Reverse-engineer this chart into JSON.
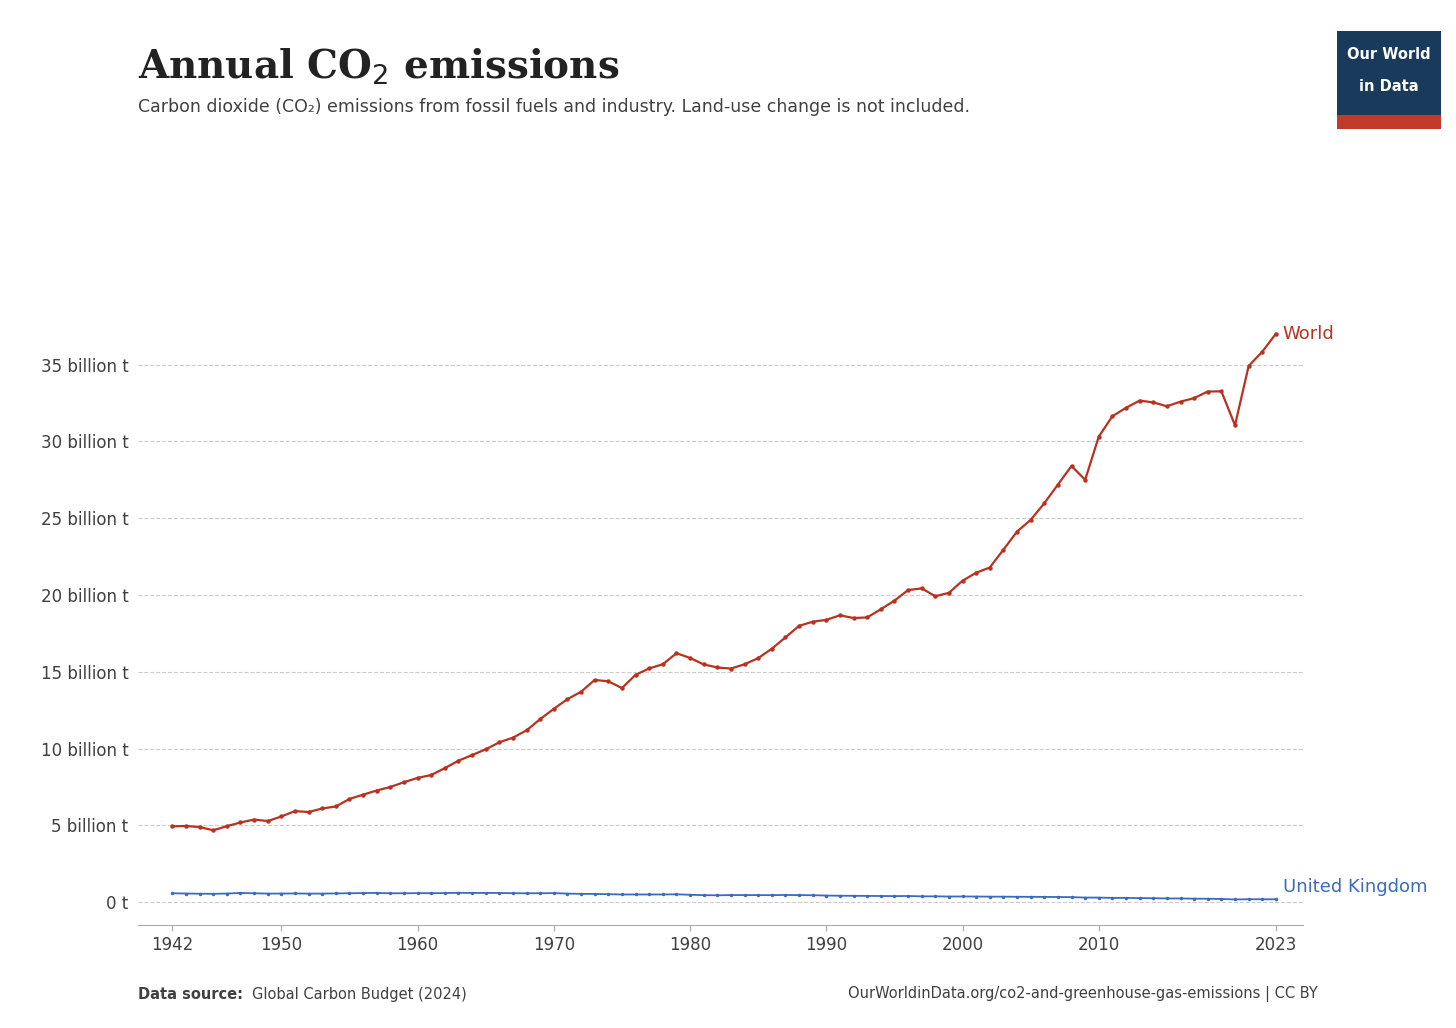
{
  "title": "Annual CO₂ emissions",
  "subtitle": "Carbon dioxide (CO₂) emissions from fossil fuels and industry. Land-use change is not included.",
  "datasource_left": "Data source: Global Carbon Budget (2024)",
  "datasource_right": "OurWorldinData.org/co2-and-greenhouse-gas-emissions | CC BY",
  "logo_text1": "Our World",
  "logo_text2": "in Data",
  "logo_bg": "#1a3a5c",
  "logo_stripe": "#c0392b",
  "world_color": "#b83220",
  "uk_color": "#3b6bbd",
  "world_label": "World",
  "uk_label": "United Kingdom",
  "world_years": [
    1942,
    1943,
    1944,
    1945,
    1946,
    1947,
    1948,
    1949,
    1950,
    1951,
    1952,
    1953,
    1954,
    1955,
    1956,
    1957,
    1958,
    1959,
    1960,
    1961,
    1962,
    1963,
    1964,
    1965,
    1966,
    1967,
    1968,
    1969,
    1970,
    1971,
    1972,
    1973,
    1974,
    1975,
    1976,
    1977,
    1978,
    1979,
    1980,
    1981,
    1982,
    1983,
    1984,
    1985,
    1986,
    1987,
    1988,
    1989,
    1990,
    1991,
    1992,
    1993,
    1994,
    1995,
    1996,
    1997,
    1998,
    1999,
    2000,
    2001,
    2002,
    2003,
    2004,
    2005,
    2006,
    2007,
    2008,
    2009,
    2010,
    2011,
    2012,
    2013,
    2014,
    2015,
    2016,
    2017,
    2018,
    2019,
    2020,
    2021,
    2022,
    2023
  ],
  "world_values": [
    4.94,
    4.96,
    4.89,
    4.68,
    4.95,
    5.19,
    5.38,
    5.28,
    5.58,
    5.93,
    5.87,
    6.1,
    6.23,
    6.72,
    7.0,
    7.27,
    7.5,
    7.81,
    8.09,
    8.28,
    8.73,
    9.21,
    9.58,
    9.95,
    10.41,
    10.71,
    11.19,
    11.92,
    12.59,
    13.22,
    13.7,
    14.47,
    14.38,
    13.94,
    14.8,
    15.22,
    15.49,
    16.21,
    15.9,
    15.48,
    15.28,
    15.21,
    15.49,
    15.89,
    16.5,
    17.24,
    17.99,
    18.26,
    18.38,
    18.68,
    18.5,
    18.54,
    19.07,
    19.63,
    20.32,
    20.43,
    19.92,
    20.14,
    20.93,
    21.45,
    21.79,
    22.95,
    24.13,
    24.89,
    25.97,
    27.19,
    28.4,
    27.5,
    30.31,
    31.64,
    32.19,
    32.66,
    32.54,
    32.29,
    32.59,
    32.82,
    33.25,
    33.26,
    31.05,
    34.91,
    35.84,
    37.01
  ],
  "uk_years": [
    1942,
    1943,
    1944,
    1945,
    1946,
    1947,
    1948,
    1949,
    1950,
    1951,
    1952,
    1953,
    1954,
    1955,
    1956,
    1957,
    1958,
    1959,
    1960,
    1961,
    1962,
    1963,
    1964,
    1965,
    1966,
    1967,
    1968,
    1969,
    1970,
    1971,
    1972,
    1973,
    1974,
    1975,
    1976,
    1977,
    1978,
    1979,
    1980,
    1981,
    1982,
    1983,
    1984,
    1985,
    1986,
    1987,
    1988,
    1989,
    1990,
    1991,
    1992,
    1993,
    1994,
    1995,
    1996,
    1997,
    1998,
    1999,
    2000,
    2001,
    2002,
    2003,
    2004,
    2005,
    2006,
    2007,
    2008,
    2009,
    2010,
    2011,
    2012,
    2013,
    2014,
    2015,
    2016,
    2017,
    2018,
    2019,
    2020,
    2021,
    2022,
    2023
  ],
  "uk_values": [
    0.578,
    0.562,
    0.549,
    0.545,
    0.56,
    0.6,
    0.578,
    0.558,
    0.56,
    0.567,
    0.557,
    0.558,
    0.568,
    0.583,
    0.591,
    0.603,
    0.578,
    0.58,
    0.587,
    0.582,
    0.592,
    0.611,
    0.6,
    0.602,
    0.601,
    0.581,
    0.578,
    0.582,
    0.588,
    0.558,
    0.54,
    0.536,
    0.518,
    0.5,
    0.5,
    0.5,
    0.501,
    0.511,
    0.481,
    0.457,
    0.448,
    0.459,
    0.462,
    0.46,
    0.459,
    0.47,
    0.459,
    0.452,
    0.431,
    0.418,
    0.413,
    0.407,
    0.401,
    0.393,
    0.401,
    0.38,
    0.379,
    0.368,
    0.37,
    0.368,
    0.358,
    0.357,
    0.35,
    0.347,
    0.342,
    0.337,
    0.327,
    0.3,
    0.298,
    0.278,
    0.278,
    0.265,
    0.258,
    0.242,
    0.24,
    0.229,
    0.222,
    0.211,
    0.175,
    0.192,
    0.188,
    0.188
  ],
  "ytick_labels": [
    "0 t",
    "5 billion t",
    "10 billion t",
    "15 billion t",
    "20 billion t",
    "25 billion t",
    "30 billion t",
    "35 billion t"
  ],
  "ytick_vals": [
    0,
    5,
    10,
    15,
    20,
    25,
    30,
    35
  ],
  "xticks": [
    1942,
    1950,
    1960,
    1970,
    1980,
    1990,
    2000,
    2010,
    2023
  ],
  "xlim": [
    1939.5,
    2025
  ],
  "ylim": [
    -1.5,
    40
  ],
  "background_color": "#ffffff",
  "grid_color": "#cccccc",
  "text_color": "#404040",
  "title_color": "#222222"
}
